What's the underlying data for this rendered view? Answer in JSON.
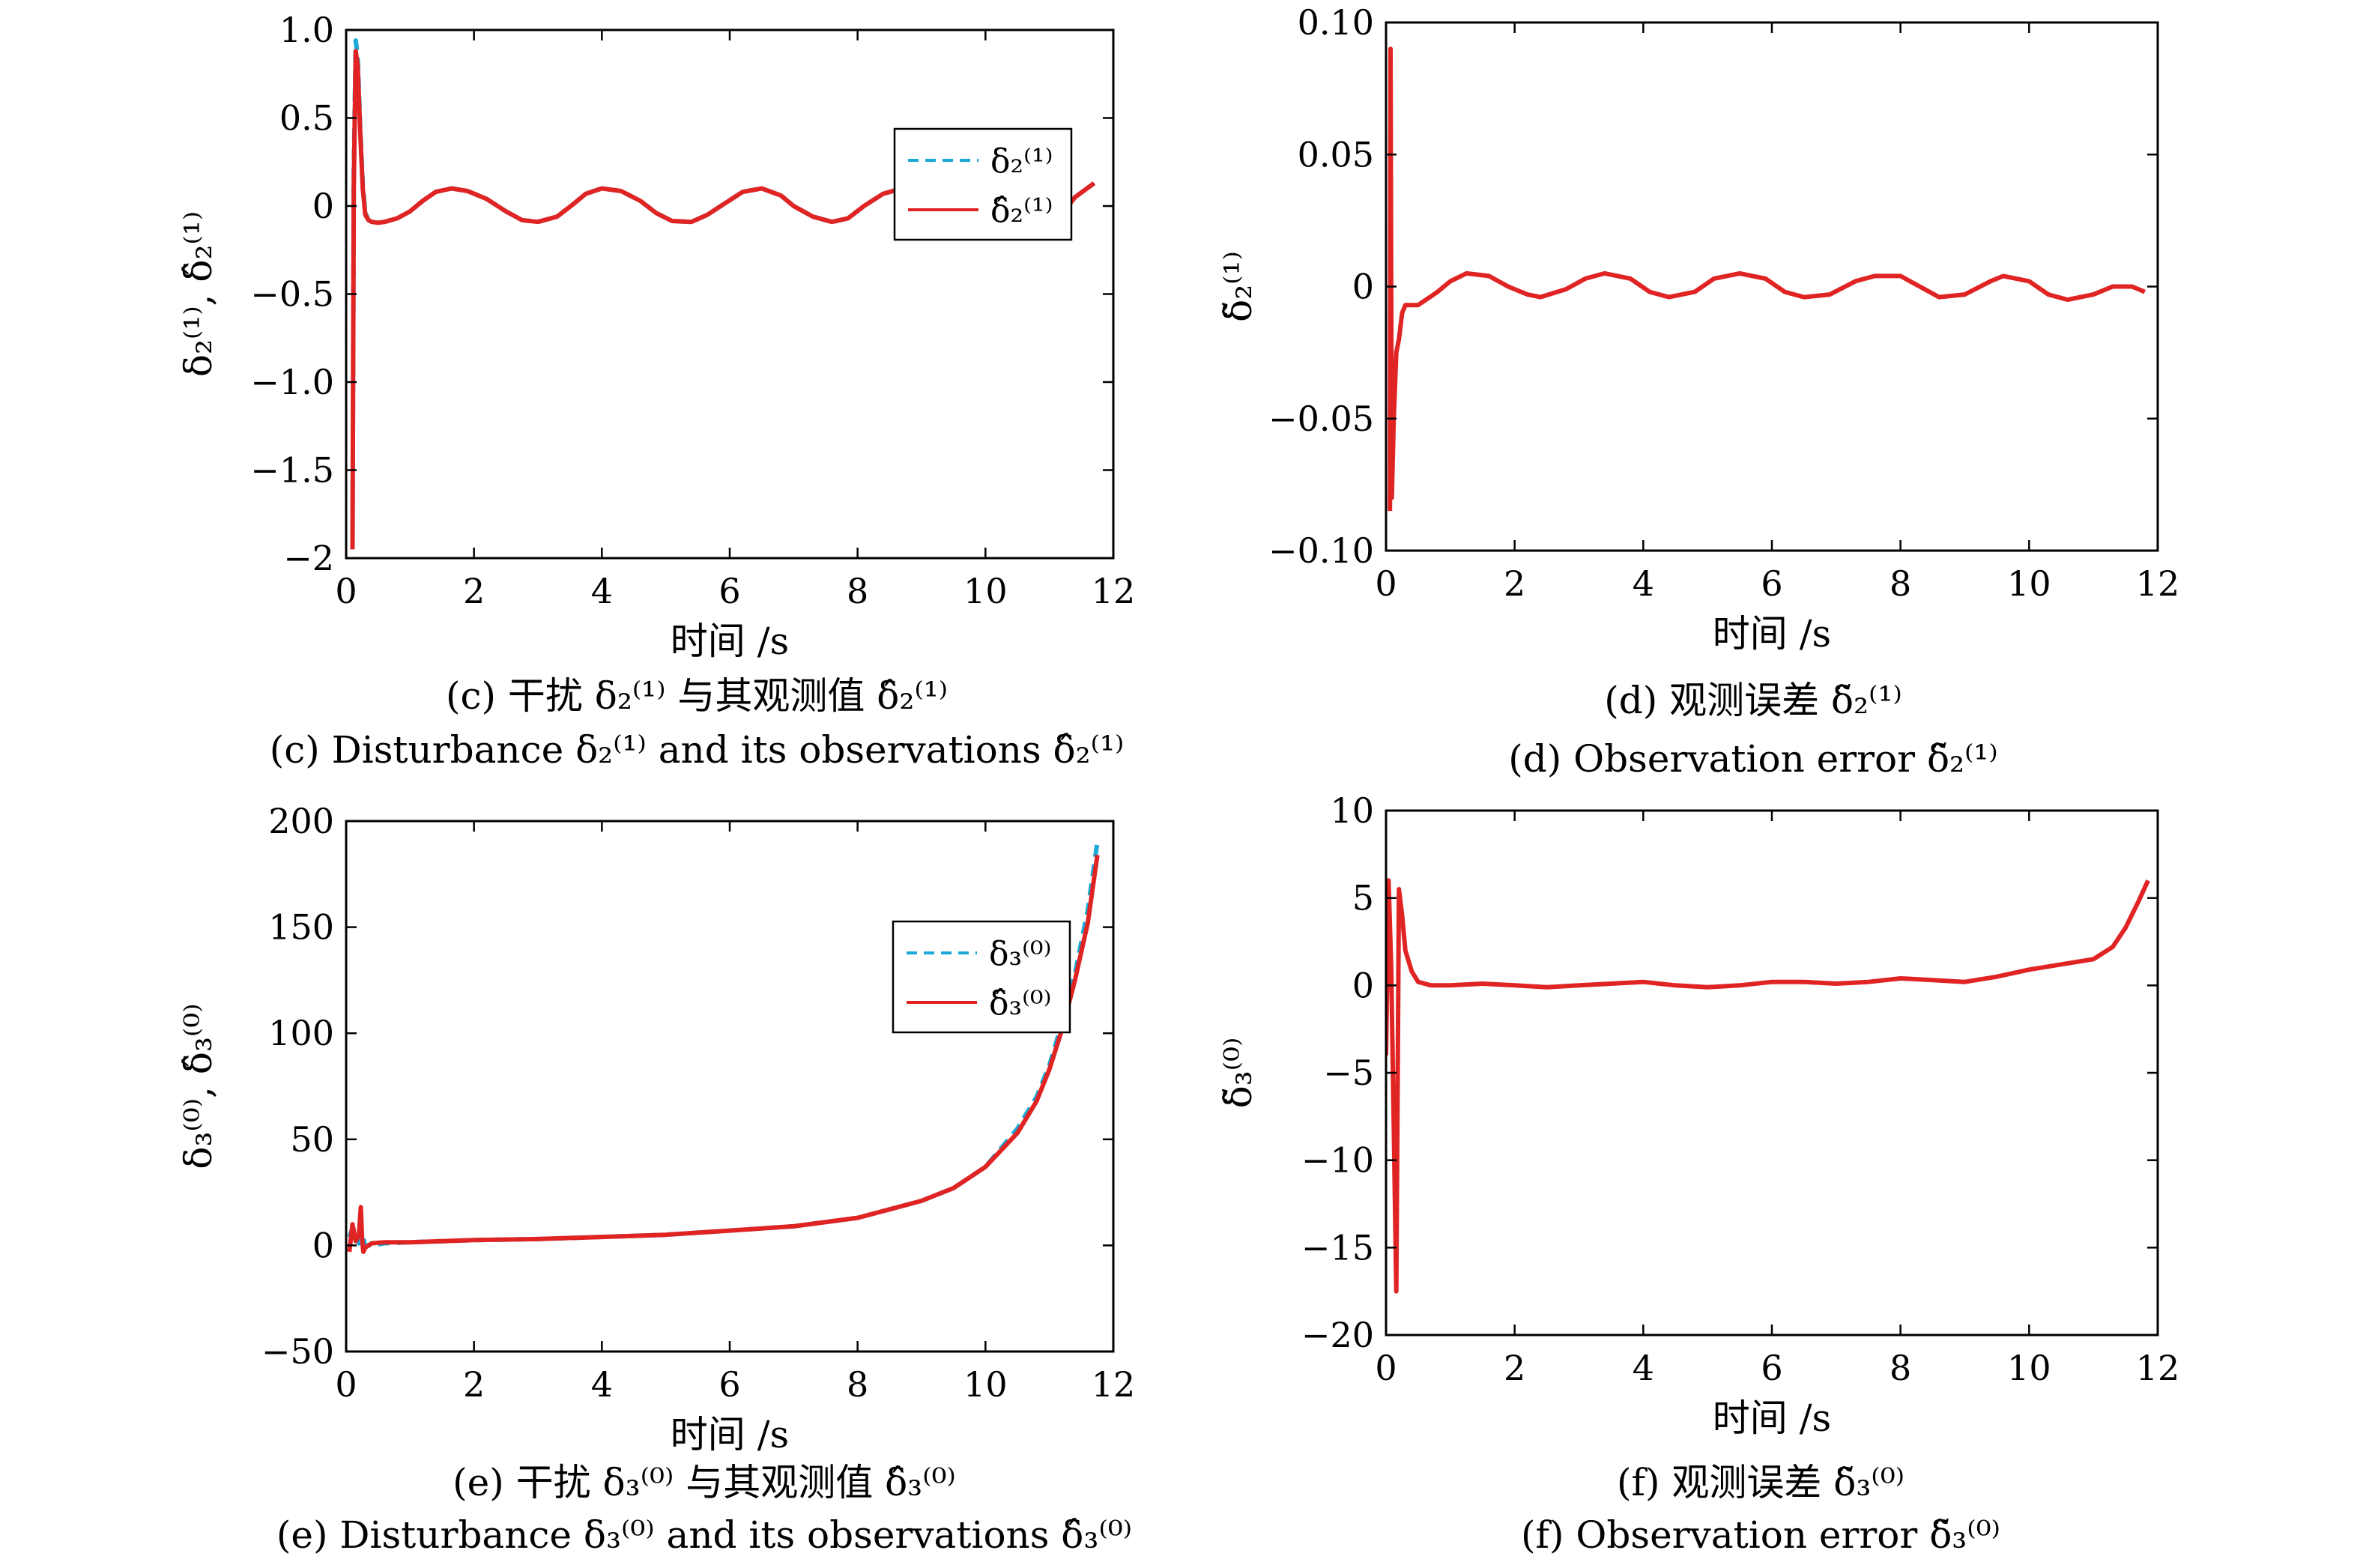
{
  "figure": {
    "colors": {
      "true_series": "#1ba8d8",
      "estimate_series": "#e02424",
      "frame": "#000000"
    },
    "panels": [
      {
        "id": "c",
        "caption_cn": "(c) 干扰 δ₂⁽¹⁾ 与其观测值 δ̂₂⁽¹⁾",
        "caption_en": "(c) Disturbance δ₂⁽¹⁾ and its observations δ̂₂⁽¹⁾",
        "chart_data": {
          "type": "line",
          "xlabel": "时间 /s",
          "ylabel": "δ₂⁽¹⁾, δ̂₂⁽¹⁾",
          "xlim": [
            0,
            12
          ],
          "ylim": [
            -2,
            1
          ],
          "xticks": [
            "0",
            "2",
            "4",
            "6",
            "8",
            "10",
            "12"
          ],
          "yticks": [
            "1.0",
            "0.5",
            "0",
            "−0.5",
            "−1.0",
            "−1.5",
            "−2"
          ],
          "ytick_values": [
            1,
            0.5,
            0,
            -0.5,
            -1,
            -1.5,
            -2
          ],
          "legend": "top-right",
          "series": [
            {
              "name": "δ₂⁽¹⁾",
              "style": "dashed",
              "color": "#1ba8d8",
              "x": [
                0.1,
                0.12,
                0.15,
                0.18,
                0.22,
                0.26,
                0.3,
                0.35,
                0.4,
                0.5,
                0.6,
                0.8,
                1.0,
                1.2,
                1.4,
                1.65,
                1.9,
                2.2,
                2.5,
                2.75,
                3.0,
                3.3,
                3.55,
                3.75,
                4.0,
                4.3,
                4.6,
                4.85,
                5.1,
                5.4,
                5.65,
                5.9,
                6.2,
                6.5,
                6.8,
                7.0,
                7.3,
                7.6,
                7.85,
                8.1,
                8.4,
                8.7,
                9.0,
                9.3,
                9.6,
                9.9,
                10.2,
                10.5,
                10.8,
                11.1,
                11.4,
                11.7
              ],
              "y": [
                -1.95,
                0.2,
                0.94,
                0.85,
                0.45,
                0.12,
                -0.04,
                -0.08,
                -0.09,
                -0.095,
                -0.09,
                -0.07,
                -0.03,
                0.03,
                0.08,
                0.1,
                0.085,
                0.04,
                -0.03,
                -0.08,
                -0.09,
                -0.06,
                0.01,
                0.07,
                0.1,
                0.085,
                0.03,
                -0.04,
                -0.085,
                -0.09,
                -0.05,
                0.01,
                0.08,
                0.1,
                0.06,
                0.0,
                -0.06,
                -0.09,
                -0.07,
                0.0,
                0.07,
                0.1,
                0.07,
                0.0,
                -0.06,
                -0.1,
                -0.08,
                -0.02,
                -0.05,
                -0.09,
                0.05,
                0.13
              ]
            },
            {
              "name": "δ̂₂⁽¹⁾",
              "style": "solid",
              "color": "#e02424",
              "x": [
                0.1,
                0.12,
                0.15,
                0.18,
                0.22,
                0.26,
                0.3,
                0.35,
                0.4,
                0.5,
                0.6,
                0.8,
                1.0,
                1.2,
                1.4,
                1.65,
                1.9,
                2.2,
                2.5,
                2.75,
                3.0,
                3.3,
                3.55,
                3.75,
                4.0,
                4.3,
                4.6,
                4.85,
                5.1,
                5.4,
                5.65,
                5.9,
                6.2,
                6.5,
                6.8,
                7.0,
                7.3,
                7.6,
                7.85,
                8.1,
                8.4,
                8.7,
                9.0,
                9.3,
                9.6,
                9.9,
                10.2,
                10.5,
                10.8,
                11.1,
                11.4,
                11.7
              ],
              "y": [
                -1.95,
                0.1,
                0.88,
                0.8,
                0.42,
                0.1,
                -0.05,
                -0.08,
                -0.09,
                -0.095,
                -0.09,
                -0.07,
                -0.03,
                0.03,
                0.08,
                0.1,
                0.085,
                0.04,
                -0.03,
                -0.08,
                -0.09,
                -0.06,
                0.01,
                0.07,
                0.1,
                0.085,
                0.03,
                -0.04,
                -0.085,
                -0.09,
                -0.05,
                0.01,
                0.08,
                0.1,
                0.06,
                0.0,
                -0.06,
                -0.09,
                -0.07,
                0.0,
                0.07,
                0.1,
                0.07,
                0.0,
                -0.06,
                -0.1,
                -0.08,
                -0.02,
                -0.05,
                -0.09,
                0.05,
                0.13
              ]
            }
          ]
        }
      },
      {
        "id": "d",
        "caption_cn": "(d) 观测误差 δ̃₂⁽¹⁾",
        "caption_en": "(d) Observation error δ̃₂⁽¹⁾",
        "chart_data": {
          "type": "line",
          "xlabel": "时间 /s",
          "ylabel": "δ̃₂⁽¹⁾",
          "xlim": [
            0,
            12
          ],
          "ylim": [
            -0.1,
            0.1
          ],
          "xticks": [
            "0",
            "2",
            "4",
            "6",
            "8",
            "10",
            "12"
          ],
          "yticks": [
            "0.10",
            "0.05",
            "0",
            "−0.05",
            "−0.10"
          ],
          "ytick_values": [
            0.1,
            0.05,
            0,
            -0.05,
            -0.1
          ],
          "legend": "none",
          "series": [
            {
              "style": "solid",
              "color": "#e02424",
              "x": [
                0.06,
                0.07,
                0.09,
                0.12,
                0.16,
                0.2,
                0.25,
                0.3,
                0.5,
                0.8,
                1.0,
                1.25,
                1.6,
                1.9,
                2.2,
                2.4,
                2.8,
                3.1,
                3.4,
                3.8,
                4.1,
                4.4,
                4.8,
                5.1,
                5.5,
                5.9,
                6.2,
                6.5,
                6.9,
                7.3,
                7.6,
                8.0,
                8.3,
                8.6,
                9.0,
                9.4,
                9.6,
                10.0,
                10.3,
                10.6,
                11.0,
                11.3,
                11.6,
                11.8
              ],
              "y": [
                -0.085,
                0.09,
                -0.08,
                -0.05,
                -0.025,
                -0.02,
                -0.01,
                -0.007,
                -0.007,
                -0.002,
                0.002,
                0.005,
                0.004,
                0.0,
                -0.003,
                -0.004,
                -0.001,
                0.003,
                0.005,
                0.003,
                -0.002,
                -0.004,
                -0.002,
                0.003,
                0.005,
                0.003,
                -0.002,
                -0.004,
                -0.003,
                0.002,
                0.004,
                0.004,
                0.0,
                -0.004,
                -0.003,
                0.002,
                0.004,
                0.002,
                -0.003,
                -0.005,
                -0.003,
                0.0,
                0.0,
                -0.002
              ]
            }
          ]
        }
      },
      {
        "id": "e",
        "caption_cn": "(e) 干扰 δ₃⁽⁰⁾ 与其观测值 δ̂₃⁽⁰⁾",
        "caption_en": "(e) Disturbance δ₃⁽⁰⁾ and its observations δ̂₃⁽⁰⁾",
        "chart_data": {
          "type": "line",
          "xlabel": "时间 /s",
          "ylabel": "δ₃⁽⁰⁾, δ̂₃⁽⁰⁾",
          "xlim": [
            0,
            12
          ],
          "ylim": [
            -50,
            200
          ],
          "xticks": [
            "0",
            "2",
            "4",
            "6",
            "8",
            "10",
            "12"
          ],
          "yticks": [
            "200",
            "150",
            "100",
            "50",
            "0",
            "−50"
          ],
          "ytick_values": [
            200,
            150,
            100,
            50,
            0,
            -50
          ],
          "legend": "top-right",
          "series": [
            {
              "name": "δ₃⁽⁰⁾",
              "style": "dashed",
              "color": "#1ba8d8",
              "x": [
                0.05,
                0.1,
                0.15,
                0.2,
                0.25,
                0.3,
                0.4,
                0.6,
                1.0,
                2.0,
                3.0,
                4.0,
                5.0,
                6.0,
                7.0,
                8.0,
                8.5,
                9.0,
                9.5,
                10.0,
                10.5,
                10.8,
                11.0,
                11.2,
                11.4,
                11.6,
                11.75
              ],
              "y": [
                4,
                8,
                3,
                1,
                5,
                0,
                0,
                1,
                1.5,
                2.5,
                3,
                4,
                5,
                7,
                9,
                13,
                17,
                21,
                27,
                37,
                55,
                70,
                85,
                105,
                128,
                158,
                190
              ]
            },
            {
              "name": "δ̂₃⁽⁰⁾",
              "style": "solid",
              "color": "#e02424",
              "x": [
                0.05,
                0.1,
                0.15,
                0.2,
                0.23,
                0.25,
                0.27,
                0.3,
                0.4,
                0.6,
                1.0,
                2.0,
                3.0,
                4.0,
                5.0,
                6.0,
                7.0,
                8.0,
                8.5,
                9.0,
                9.5,
                10.0,
                10.5,
                10.8,
                11.0,
                11.2,
                11.4,
                11.6,
                11.75
              ],
              "y": [
                -3,
                10,
                2,
                5,
                18,
                3,
                -3,
                -1,
                1,
                1.5,
                1.5,
                2.5,
                3,
                4,
                5,
                7,
                9,
                13,
                17,
                21,
                27,
                37,
                53,
                68,
                83,
                102,
                125,
                152,
                184
              ]
            }
          ]
        }
      },
      {
        "id": "f",
        "caption_cn": "(f) 观测误差 δ̃₃⁽⁰⁾",
        "caption_en": "(f) Observation error δ̃₃⁽⁰⁾",
        "chart_data": {
          "type": "line",
          "xlabel": "时间 /s",
          "ylabel": "δ̃₃⁽⁰⁾",
          "xlim": [
            0,
            12
          ],
          "ylim": [
            -20,
            10
          ],
          "xticks": [
            "0",
            "2",
            "4",
            "6",
            "8",
            "10",
            "12"
          ],
          "yticks": [
            "10",
            "5",
            "0",
            "−5",
            "−10",
            "−15",
            "−20"
          ],
          "ytick_values": [
            10,
            5,
            0,
            -5,
            -10,
            -15,
            -20
          ],
          "legend": "none",
          "series": [
            {
              "style": "solid",
              "color": "#e02424",
              "x": [
                0.0,
                0.04,
                0.08,
                0.12,
                0.16,
                0.2,
                0.25,
                0.3,
                0.4,
                0.5,
                0.7,
                1.0,
                1.5,
                2.0,
                2.5,
                3.0,
                3.5,
                4.0,
                4.5,
                5.0,
                5.5,
                6.0,
                6.5,
                7.0,
                7.5,
                8.0,
                8.5,
                9.0,
                9.5,
                10.0,
                10.5,
                11.0,
                11.3,
                11.5,
                11.7,
                11.85
              ],
              "y": [
                -4,
                6,
                1,
                -8,
                -17.5,
                5.5,
                4,
                2,
                0.8,
                0.2,
                0,
                0,
                0.1,
                0,
                -0.1,
                0,
                0.1,
                0.2,
                0,
                -0.1,
                0,
                0.2,
                0.2,
                0.1,
                0.2,
                0.4,
                0.3,
                0.2,
                0.5,
                0.9,
                1.2,
                1.5,
                2.2,
                3.3,
                4.8,
                6
              ]
            }
          ]
        }
      }
    ]
  }
}
